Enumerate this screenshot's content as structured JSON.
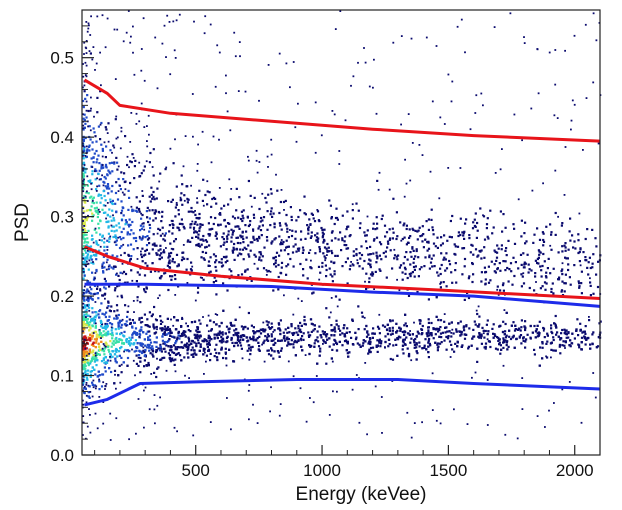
{
  "chart_data": {
    "type": "heatmap",
    "title": "",
    "xlabel": "Energy (keVee)",
    "ylabel": "PSD",
    "xlim": [
      50,
      2100
    ],
    "ylim": [
      0.0,
      0.56
    ],
    "x_ticks": [
      500,
      1000,
      1500,
      2000
    ],
    "y_ticks": [
      0.0,
      0.1,
      0.2,
      0.3,
      0.4,
      0.5
    ],
    "x_tick_labels": [
      "500",
      "1000",
      "1500",
      "2000"
    ],
    "y_tick_labels": [
      "0.0",
      "0.1",
      "0.2",
      "0.3",
      "0.4",
      "0.5"
    ],
    "grid": false,
    "legend": "none",
    "colormap": [
      "#0a0a6e",
      "#1f49c8",
      "#22b8e6",
      "#39e0a6",
      "#d9e84a",
      "#f08a1c",
      "#c8141a",
      "#7a0a0a"
    ],
    "density_bands": [
      {
        "center": [
          [
            60,
            0.305
          ],
          [
            150,
            0.298
          ],
          [
            300,
            0.285
          ],
          [
            600,
            0.275
          ],
          [
            1000,
            0.265
          ],
          [
            1500,
            0.255
          ],
          [
            2100,
            0.24
          ]
        ],
        "intensity": 0.62
      },
      {
        "center": [
          [
            60,
            0.143
          ],
          [
            150,
            0.143
          ],
          [
            300,
            0.145
          ],
          [
            600,
            0.148
          ],
          [
            1000,
            0.15
          ],
          [
            1500,
            0.15
          ],
          [
            2100,
            0.15
          ]
        ],
        "intensity": 1.0
      }
    ],
    "series": [
      {
        "color": "#e8141a",
        "points": [
          [
            60,
            0.472
          ],
          [
            150,
            0.455
          ],
          [
            200,
            0.44
          ],
          [
            400,
            0.43
          ],
          [
            800,
            0.42
          ],
          [
            1200,
            0.41
          ],
          [
            1600,
            0.402
          ],
          [
            2100,
            0.395
          ]
        ]
      },
      {
        "color": "#e8141a",
        "points": [
          [
            60,
            0.262
          ],
          [
            150,
            0.25
          ],
          [
            300,
            0.235
          ],
          [
            600,
            0.225
          ],
          [
            1000,
            0.215
          ],
          [
            1500,
            0.207
          ],
          [
            2100,
            0.197
          ]
        ]
      },
      {
        "color": "#1d2bea",
        "points": [
          [
            60,
            0.215
          ],
          [
            300,
            0.215
          ],
          [
            800,
            0.212
          ],
          [
            1200,
            0.205
          ],
          [
            1600,
            0.2
          ],
          [
            2100,
            0.187
          ]
        ]
      },
      {
        "color": "#1d2bea",
        "points": [
          [
            60,
            0.063
          ],
          [
            150,
            0.07
          ],
          [
            280,
            0.09
          ],
          [
            500,
            0.092
          ],
          [
            900,
            0.095
          ],
          [
            1300,
            0.095
          ],
          [
            1600,
            0.09
          ],
          [
            2100,
            0.083
          ]
        ]
      }
    ]
  }
}
